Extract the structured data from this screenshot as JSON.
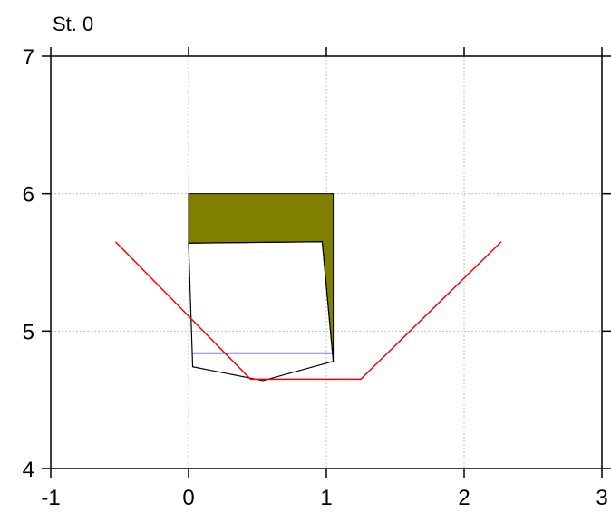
{
  "chart_data": {
    "type": "line",
    "title": "St. 0",
    "xlabel": "",
    "ylabel": "",
    "xlim": [
      -1,
      3
    ],
    "ylim": [
      4,
      7
    ],
    "x_ticks": [
      -1,
      0,
      1,
      2,
      3
    ],
    "y_ticks": [
      4,
      5,
      6,
      7
    ],
    "grid": true,
    "grid_color": "#c0c0c0",
    "shapes": [
      {
        "kind": "filled-polygon",
        "color": "#808000",
        "points": [
          [
            0.0,
            6.0
          ],
          [
            1.05,
            6.0
          ],
          [
            1.05,
            4.78
          ],
          [
            0.97,
            5.65
          ],
          [
            0.0,
            5.64
          ]
        ]
      },
      {
        "kind": "outline-polygon",
        "color": "#000000",
        "points": [
          [
            0.0,
            5.64
          ],
          [
            0.97,
            5.65
          ],
          [
            1.05,
            4.78
          ],
          [
            0.54,
            4.64
          ],
          [
            0.03,
            4.74
          ]
        ]
      }
    ],
    "series": [
      {
        "color": "#ff0000",
        "x": [
          -0.53,
          0.45,
          1.25,
          2.27
        ],
        "y": [
          5.65,
          4.65,
          4.65,
          5.65
        ]
      },
      {
        "color": "#0000ff",
        "x": [
          0.03,
          1.05
        ],
        "y": [
          4.84,
          4.84
        ]
      }
    ]
  }
}
